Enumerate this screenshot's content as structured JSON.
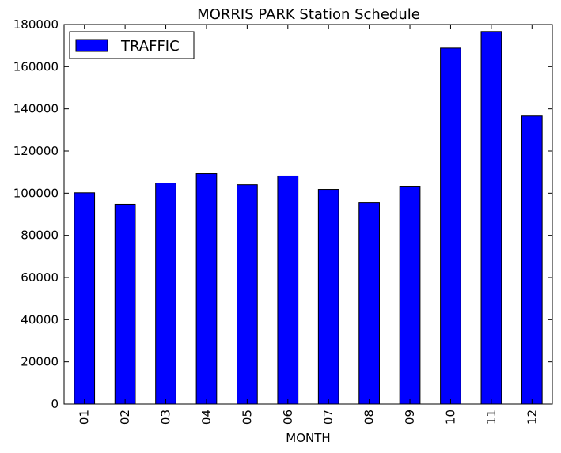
{
  "chart_data": {
    "type": "bar",
    "title": "MORRIS PARK Station Schedule",
    "xlabel": "MONTH",
    "ylabel": "",
    "categories": [
      "01",
      "02",
      "03",
      "04",
      "05",
      "06",
      "07",
      "08",
      "09",
      "10",
      "11",
      "12"
    ],
    "series": [
      {
        "name": "TRAFFIC",
        "values": [
          100200,
          94700,
          104800,
          109300,
          104000,
          108200,
          101800,
          95400,
          103300,
          168800,
          176700,
          136600
        ],
        "color": "#0000ff"
      }
    ],
    "ylim": [
      0,
      180000
    ],
    "yticks": [
      "0",
      "20000",
      "40000",
      "60000",
      "80000",
      "100000",
      "120000",
      "140000",
      "160000",
      "180000"
    ],
    "legend_position": "top-left",
    "grid": false
  }
}
